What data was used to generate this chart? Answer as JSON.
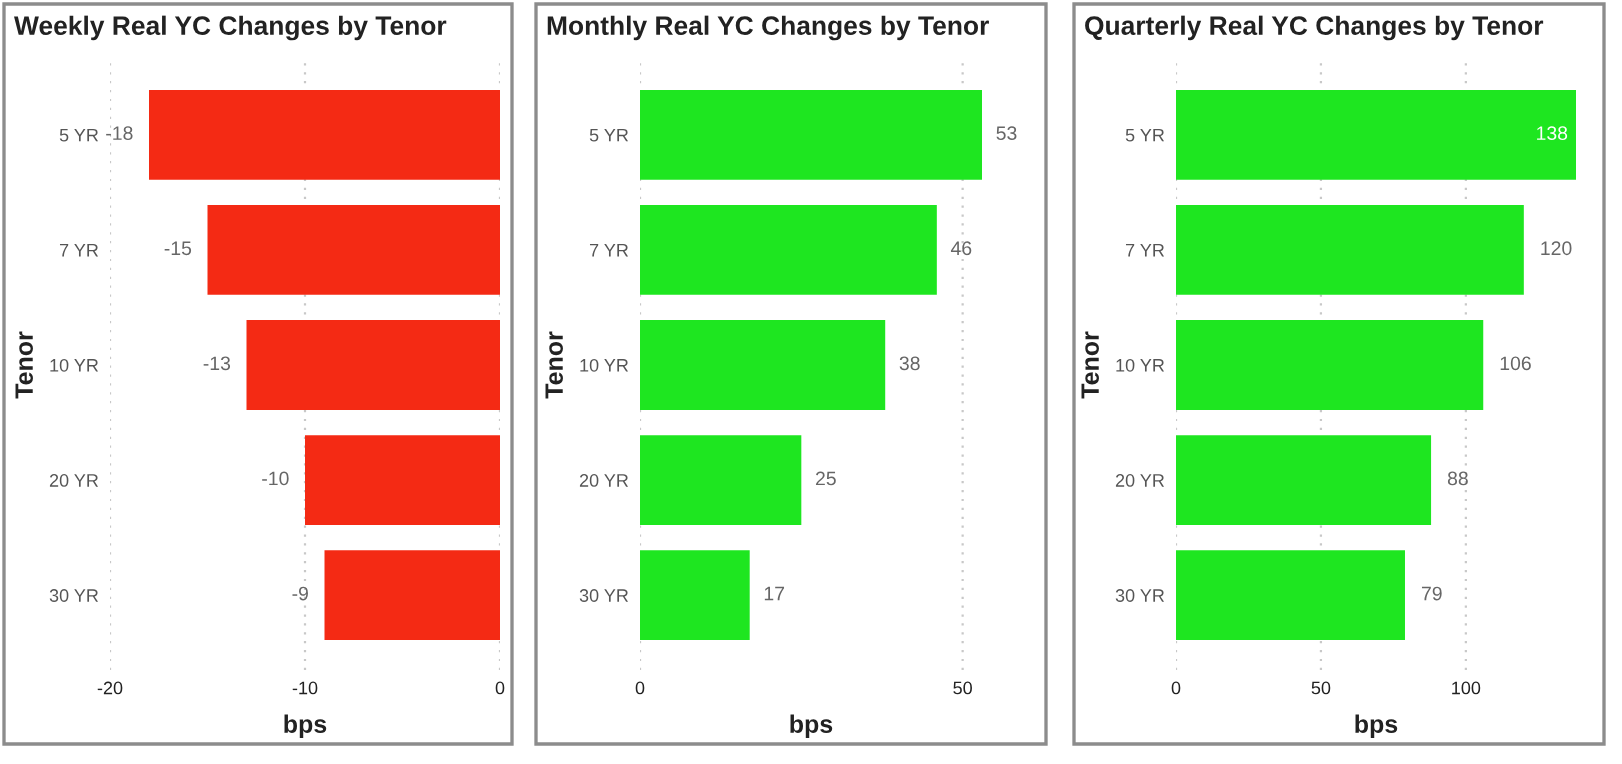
{
  "chart_data": [
    {
      "type": "bar",
      "orientation": "horizontal",
      "title": "Weekly Real YC Changes by Tenor",
      "xlabel": "bps",
      "ylabel": "Tenor",
      "categories": [
        "5 YR",
        "7 YR",
        "10 YR",
        "20 YR",
        "30 YR"
      ],
      "values": [
        -18,
        -15,
        -13,
        -10,
        -9
      ],
      "color": "#f42a14",
      "xlim": [
        -20,
        0
      ],
      "xticks": [
        -20,
        -10,
        0
      ],
      "grid": "x",
      "data_labels": true
    },
    {
      "type": "bar",
      "orientation": "horizontal",
      "title": "Monthly Real YC Changes by Tenor",
      "xlabel": "bps",
      "ylabel": "Tenor",
      "categories": [
        "5 YR",
        "7 YR",
        "10 YR",
        "20 YR",
        "30 YR"
      ],
      "values": [
        53,
        46,
        38,
        25,
        17
      ],
      "color": "#1ee620",
      "xlim": [
        0,
        53
      ],
      "xticks": [
        0,
        50
      ],
      "grid": "x",
      "data_labels": true
    },
    {
      "type": "bar",
      "orientation": "horizontal",
      "title": "Quarterly Real YC Changes by Tenor",
      "xlabel": "bps",
      "ylabel": "Tenor",
      "categories": [
        "5 YR",
        "7 YR",
        "10 YR",
        "20 YR",
        "30 YR"
      ],
      "values": [
        138,
        120,
        106,
        88,
        79
      ],
      "color": "#1ee620",
      "xlim": [
        0,
        138
      ],
      "xticks": [
        0,
        50,
        100
      ],
      "grid": "x",
      "data_labels": true
    }
  ]
}
